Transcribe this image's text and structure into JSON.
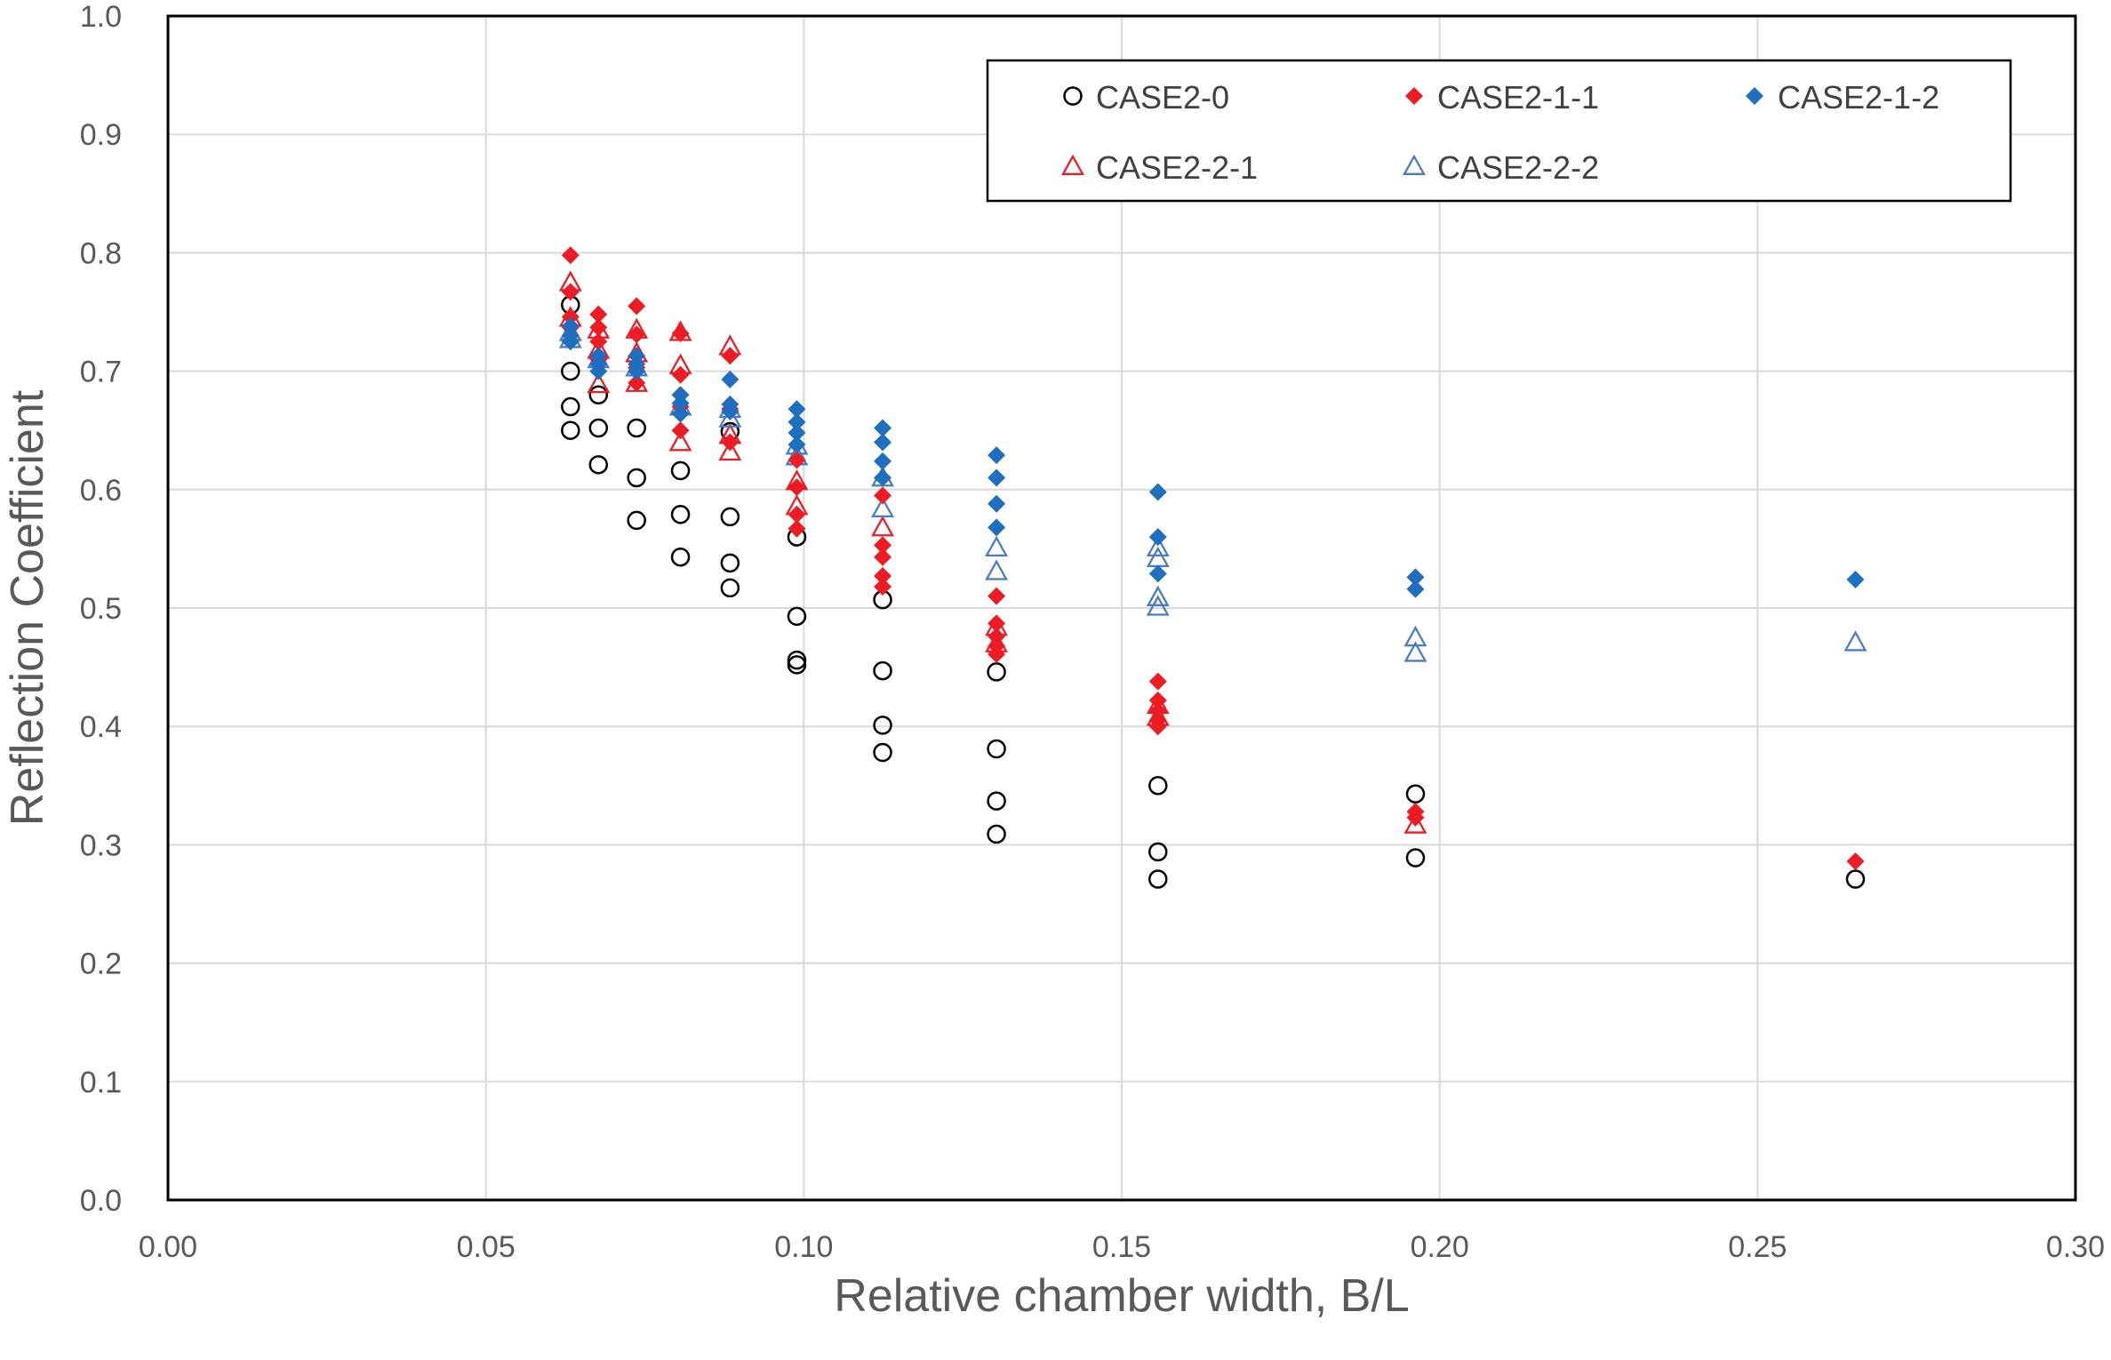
{
  "chart_data": {
    "type": "scatter",
    "title": "",
    "xlabel": "Relative chamber width, B/L",
    "ylabel": "Reflection Coefficient",
    "xlim": [
      0.0,
      0.3
    ],
    "ylim": [
      0.0,
      1.0
    ],
    "grid": true,
    "legend_position": "top-right",
    "x_ticks": [
      0.0,
      0.05,
      0.1,
      0.15,
      0.2,
      0.25,
      0.3
    ],
    "x_tick_labels": [
      "0.00",
      "0.05",
      "0.10",
      "0.15",
      "0.20",
      "0.25",
      "0.30"
    ],
    "y_ticks": [
      0.0,
      0.1,
      0.2,
      0.3,
      0.4,
      0.5,
      0.6,
      0.7,
      0.8,
      0.9,
      1.0
    ],
    "y_tick_labels": [
      "0.0",
      "0.1",
      "0.2",
      "0.3",
      "0.4",
      "0.5",
      "0.6",
      "0.7",
      "0.8",
      "0.9",
      "1.0"
    ],
    "series": [
      {
        "name": "CASE2-0",
        "marker": "open-circle",
        "color": "#000000",
        "points": [
          [
            0.0633,
            0.756
          ],
          [
            0.0633,
            0.7
          ],
          [
            0.0633,
            0.67
          ],
          [
            0.0633,
            0.65
          ],
          [
            0.0677,
            0.68
          ],
          [
            0.0677,
            0.652
          ],
          [
            0.0677,
            0.621
          ],
          [
            0.0737,
            0.652
          ],
          [
            0.0737,
            0.61
          ],
          [
            0.0737,
            0.574
          ],
          [
            0.0806,
            0.616
          ],
          [
            0.0806,
            0.579
          ],
          [
            0.0806,
            0.543
          ],
          [
            0.0884,
            0.649
          ],
          [
            0.0884,
            0.577
          ],
          [
            0.0884,
            0.538
          ],
          [
            0.0884,
            0.517
          ],
          [
            0.0989,
            0.56
          ],
          [
            0.0989,
            0.493
          ],
          [
            0.0989,
            0.456
          ],
          [
            0.0989,
            0.452
          ],
          [
            0.1124,
            0.507
          ],
          [
            0.1124,
            0.447
          ],
          [
            0.1124,
            0.401
          ],
          [
            0.1124,
            0.378
          ],
          [
            0.1303,
            0.446
          ],
          [
            0.1303,
            0.381
          ],
          [
            0.1303,
            0.337
          ],
          [
            0.1303,
            0.309
          ],
          [
            0.1557,
            0.35
          ],
          [
            0.1557,
            0.294
          ],
          [
            0.1557,
            0.271
          ],
          [
            0.1962,
            0.343
          ],
          [
            0.1962,
            0.289
          ],
          [
            0.2654,
            0.271
          ]
        ]
      },
      {
        "name": "CASE2-1-1",
        "marker": "filled-diamond",
        "color": "#ed1c24",
        "points": [
          [
            0.0633,
            0.798
          ],
          [
            0.0633,
            0.767
          ],
          [
            0.0633,
            0.746
          ],
          [
            0.0633,
            0.737
          ],
          [
            0.0677,
            0.748
          ],
          [
            0.0677,
            0.737
          ],
          [
            0.0677,
            0.725
          ],
          [
            0.0677,
            0.71
          ],
          [
            0.0737,
            0.755
          ],
          [
            0.0737,
            0.731
          ],
          [
            0.0737,
            0.703
          ],
          [
            0.0737,
            0.69
          ],
          [
            0.0806,
            0.732
          ],
          [
            0.0806,
            0.697
          ],
          [
            0.0806,
            0.67
          ],
          [
            0.0806,
            0.65
          ],
          [
            0.0884,
            0.713
          ],
          [
            0.0884,
            0.668
          ],
          [
            0.0884,
            0.64
          ],
          [
            0.0989,
            0.625
          ],
          [
            0.0989,
            0.602
          ],
          [
            0.0989,
            0.579
          ],
          [
            0.0989,
            0.567
          ],
          [
            0.1124,
            0.595
          ],
          [
            0.1124,
            0.553
          ],
          [
            0.1124,
            0.543
          ],
          [
            0.1124,
            0.527
          ],
          [
            0.1124,
            0.518
          ],
          [
            0.1303,
            0.51
          ],
          [
            0.1303,
            0.487
          ],
          [
            0.1303,
            0.476
          ],
          [
            0.1303,
            0.468
          ],
          [
            0.1303,
            0.461
          ],
          [
            0.1557,
            0.438
          ],
          [
            0.1557,
            0.422
          ],
          [
            0.1557,
            0.413
          ],
          [
            0.1557,
            0.405
          ],
          [
            0.1557,
            0.4
          ],
          [
            0.1962,
            0.328
          ],
          [
            0.1962,
            0.323
          ],
          [
            0.2654,
            0.286
          ]
        ]
      },
      {
        "name": "CASE2-1-2",
        "marker": "filled-diamond",
        "color": "#1f6fc1",
        "points": [
          [
            0.0633,
            0.738
          ],
          [
            0.0633,
            0.73
          ],
          [
            0.0633,
            0.725
          ],
          [
            0.0677,
            0.713
          ],
          [
            0.0677,
            0.706
          ],
          [
            0.0677,
            0.7
          ],
          [
            0.0737,
            0.713
          ],
          [
            0.0737,
            0.706
          ],
          [
            0.0737,
            0.7
          ],
          [
            0.0806,
            0.68
          ],
          [
            0.0806,
            0.673
          ],
          [
            0.0806,
            0.664
          ],
          [
            0.0884,
            0.693
          ],
          [
            0.0884,
            0.672
          ],
          [
            0.0884,
            0.666
          ],
          [
            0.0989,
            0.668
          ],
          [
            0.0989,
            0.657
          ],
          [
            0.0989,
            0.648
          ],
          [
            0.0989,
            0.638
          ],
          [
            0.1124,
            0.652
          ],
          [
            0.1124,
            0.64
          ],
          [
            0.1124,
            0.624
          ],
          [
            0.1124,
            0.61
          ],
          [
            0.1303,
            0.629
          ],
          [
            0.1303,
            0.61
          ],
          [
            0.1303,
            0.588
          ],
          [
            0.1303,
            0.568
          ],
          [
            0.1557,
            0.598
          ],
          [
            0.1557,
            0.56
          ],
          [
            0.1557,
            0.529
          ],
          [
            0.1962,
            0.526
          ],
          [
            0.1962,
            0.516
          ],
          [
            0.2654,
            0.524
          ]
        ]
      },
      {
        "name": "CASE2-2-1",
        "marker": "open-triangle",
        "color": "#ed1c24",
        "points": [
          [
            0.0633,
            0.775
          ],
          [
            0.0633,
            0.745
          ],
          [
            0.0633,
            0.733
          ],
          [
            0.0677,
            0.735
          ],
          [
            0.0677,
            0.718
          ],
          [
            0.0677,
            0.689
          ],
          [
            0.0737,
            0.735
          ],
          [
            0.0737,
            0.715
          ],
          [
            0.0737,
            0.69
          ],
          [
            0.0806,
            0.733
          ],
          [
            0.0806,
            0.705
          ],
          [
            0.0806,
            0.64
          ],
          [
            0.0884,
            0.721
          ],
          [
            0.0884,
            0.646
          ],
          [
            0.0884,
            0.632
          ],
          [
            0.0989,
            0.607
          ],
          [
            0.0989,
            0.586
          ],
          [
            0.1124,
            0.568
          ],
          [
            0.1303,
            0.484
          ],
          [
            0.1303,
            0.47
          ],
          [
            0.1557,
            0.418
          ],
          [
            0.1557,
            0.408
          ],
          [
            0.1962,
            0.317
          ]
        ]
      },
      {
        "name": "CASE2-2-2",
        "marker": "open-triangle",
        "color": "#4a7cc5",
        "points": [
          [
            0.0633,
            0.733
          ],
          [
            0.0633,
            0.727
          ],
          [
            0.0677,
            0.71
          ],
          [
            0.0737,
            0.703
          ],
          [
            0.0806,
            0.67
          ],
          [
            0.0884,
            0.668
          ],
          [
            0.0884,
            0.66
          ],
          [
            0.0989,
            0.637
          ],
          [
            0.0989,
            0.628
          ],
          [
            0.1124,
            0.61
          ],
          [
            0.1124,
            0.584
          ],
          [
            0.1303,
            0.551
          ],
          [
            0.1303,
            0.531
          ],
          [
            0.1557,
            0.551
          ],
          [
            0.1557,
            0.542
          ],
          [
            0.1557,
            0.509
          ],
          [
            0.1557,
            0.501
          ],
          [
            0.1962,
            0.475
          ],
          [
            0.1962,
            0.462
          ],
          [
            0.2654,
            0.471
          ]
        ]
      }
    ]
  }
}
